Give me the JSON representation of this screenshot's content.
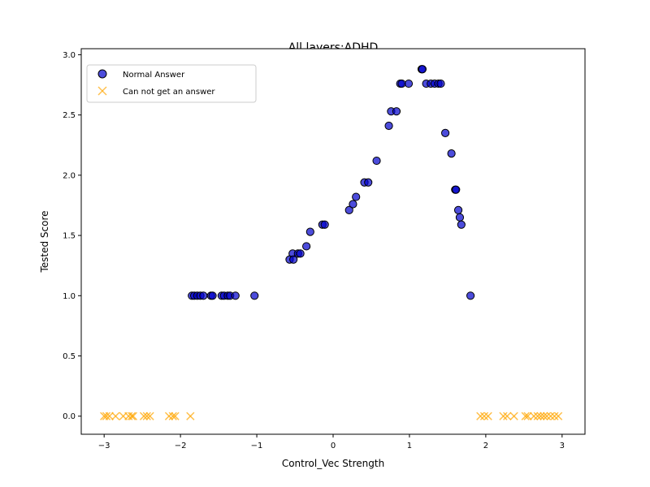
{
  "chart_data": {
    "type": "scatter",
    "title": "All layers:ADHD",
    "xlabel": "Control_Vec Strength",
    "ylabel": "Tested Score",
    "xlim": [
      -3.3,
      3.3
    ],
    "ylim": [
      -0.15,
      3.05
    ],
    "xticks": [
      -3,
      -2,
      -1,
      0,
      1,
      2,
      3
    ],
    "xtick_labels": [
      "−3",
      "−2",
      "−1",
      "0",
      "1",
      "2",
      "3"
    ],
    "yticks": [
      0.0,
      0.5,
      1.0,
      1.5,
      2.0,
      2.5,
      3.0
    ],
    "ytick_labels": [
      "0.0",
      "0.5",
      "1.0",
      "1.5",
      "2.0",
      "2.5",
      "3.0"
    ],
    "grid": false,
    "legend_position": "top-left",
    "series": [
      {
        "name": "Normal Answer",
        "marker": "circle",
        "color": "#0000cc",
        "edge_color": "#000000",
        "points": [
          [
            -1.85,
            1.0
          ],
          [
            -1.82,
            1.0
          ],
          [
            -1.78,
            1.0
          ],
          [
            -1.74,
            1.0
          ],
          [
            -1.7,
            1.0
          ],
          [
            -1.6,
            1.0
          ],
          [
            -1.58,
            1.0
          ],
          [
            -1.46,
            1.0
          ],
          [
            -1.43,
            1.0
          ],
          [
            -1.38,
            1.0
          ],
          [
            -1.35,
            1.0
          ],
          [
            -1.28,
            1.0
          ],
          [
            -1.03,
            1.0
          ],
          [
            -0.57,
            1.3
          ],
          [
            -0.53,
            1.35
          ],
          [
            -0.52,
            1.3
          ],
          [
            -0.46,
            1.35
          ],
          [
            -0.43,
            1.35
          ],
          [
            -0.35,
            1.41
          ],
          [
            -0.3,
            1.53
          ],
          [
            -0.14,
            1.59
          ],
          [
            -0.11,
            1.59
          ],
          [
            0.21,
            1.71
          ],
          [
            0.26,
            1.76
          ],
          [
            0.3,
            1.82
          ],
          [
            0.41,
            1.94
          ],
          [
            0.46,
            1.94
          ],
          [
            0.57,
            2.12
          ],
          [
            0.73,
            2.41
          ],
          [
            0.76,
            2.53
          ],
          [
            0.83,
            2.53
          ],
          [
            0.88,
            2.76
          ],
          [
            0.9,
            2.76
          ],
          [
            0.99,
            2.76
          ],
          [
            1.16,
            2.88
          ],
          [
            1.17,
            2.88
          ],
          [
            1.22,
            2.76
          ],
          [
            1.28,
            2.76
          ],
          [
            1.33,
            2.76
          ],
          [
            1.38,
            2.76
          ],
          [
            1.41,
            2.76
          ],
          [
            1.47,
            2.35
          ],
          [
            1.55,
            2.18
          ],
          [
            1.6,
            1.88
          ],
          [
            1.61,
            1.88
          ],
          [
            1.64,
            1.71
          ],
          [
            1.66,
            1.65
          ],
          [
            1.68,
            1.59
          ],
          [
            1.8,
            1.0
          ]
        ]
      },
      {
        "name": "Can not get an answer",
        "marker": "x",
        "color": "#ffa500",
        "points": [
          [
            -3.0,
            0.0
          ],
          [
            -2.97,
            0.0
          ],
          [
            -2.93,
            0.0
          ],
          [
            -2.85,
            0.0
          ],
          [
            -2.75,
            0.0
          ],
          [
            -2.68,
            0.0
          ],
          [
            -2.64,
            0.0
          ],
          [
            -2.62,
            0.0
          ],
          [
            -2.48,
            0.0
          ],
          [
            -2.44,
            0.0
          ],
          [
            -2.4,
            0.0
          ],
          [
            -2.15,
            0.0
          ],
          [
            -2.1,
            0.0
          ],
          [
            -2.07,
            0.0
          ],
          [
            -1.87,
            0.0
          ],
          [
            1.93,
            0.0
          ],
          [
            1.98,
            0.0
          ],
          [
            2.03,
            0.0
          ],
          [
            2.23,
            0.0
          ],
          [
            2.28,
            0.0
          ],
          [
            2.37,
            0.0
          ],
          [
            2.52,
            0.0
          ],
          [
            2.55,
            0.0
          ],
          [
            2.63,
            0.0
          ],
          [
            2.68,
            0.0
          ],
          [
            2.72,
            0.0
          ],
          [
            2.76,
            0.0
          ],
          [
            2.8,
            0.0
          ],
          [
            2.85,
            0.0
          ],
          [
            2.9,
            0.0
          ],
          [
            2.95,
            0.0
          ]
        ]
      }
    ]
  }
}
